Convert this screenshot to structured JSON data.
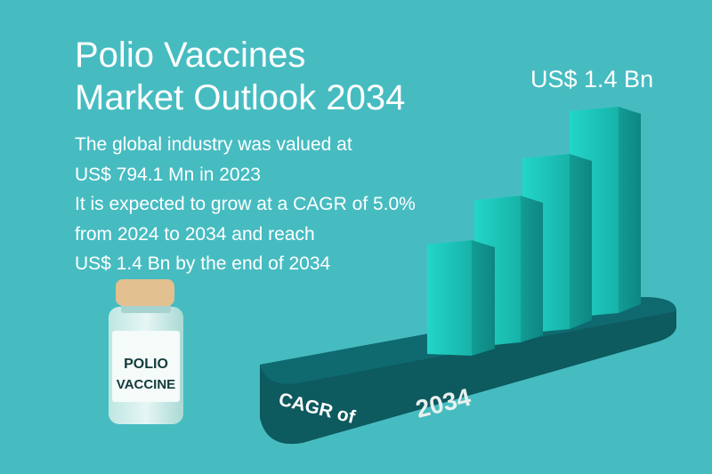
{
  "title": {
    "line1": "Polio Vaccines",
    "line2": "Market Outlook 2034"
  },
  "summary": {
    "lines": [
      "The global industry was valued at",
      "US$ 794.1 Mn in 2023",
      "It is expected to grow at a CAGR of 5.0%",
      "from 2024 to 2034 and reach",
      "US$ 1.4 Bn by the end of 2034"
    ]
  },
  "peak_label": "US$ 1.4 Bn",
  "base": {
    "label_left": "CAGR of",
    "label_year": "2034"
  },
  "vial": {
    "label_line1": "POLIO",
    "label_line2": "VACCINE"
  },
  "colors": {
    "background": "#46bcc1",
    "bar": "#1fc9bc",
    "base": "#0f6166",
    "text": "#ffffff"
  }
}
